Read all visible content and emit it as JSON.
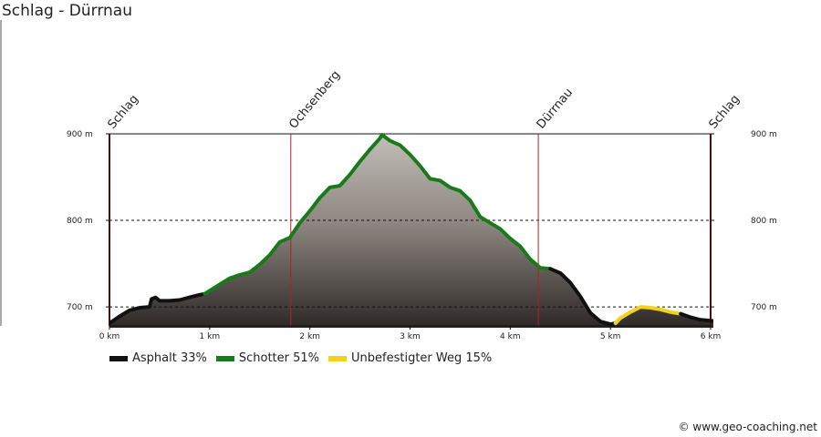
{
  "title": "Schlag - Dürrnau",
  "copyright": "© www.geo-coaching.net",
  "legend": [
    {
      "label": "Asphalt 33%",
      "color": "#111111"
    },
    {
      "label": "Schotter 51%",
      "color": "#1a7a1a"
    },
    {
      "label": "Unbefestigter Weg 15%",
      "color": "#f2d21a"
    }
  ],
  "chart_data": {
    "type": "area",
    "title": "Schlag - Dürrnau",
    "x_unit": "km",
    "y_unit": "m",
    "xlim": [
      0,
      6
    ],
    "ylim": [
      678,
      900
    ],
    "x_ticks": [
      0,
      1,
      2,
      3,
      4,
      5,
      6
    ],
    "x_tick_labels": [
      "0 km",
      "1 km",
      "2 km",
      "3 km",
      "4 km",
      "5 km",
      "6 km"
    ],
    "y_ticks": [
      700,
      800,
      900
    ],
    "y_tick_labels": [
      "700 m",
      "800 m",
      "900 m"
    ],
    "gridlines": "dashed at 700 m and 800 m",
    "waypoints": [
      {
        "name": "Schlag",
        "km": 0
      },
      {
        "name": "Ochsenberg",
        "km": 1.81
      },
      {
        "name": "Dürrnau",
        "km": 4.28
      },
      {
        "name": "Schlag",
        "km": 6.0
      }
    ],
    "series": [
      {
        "name": "Asphalt 33%",
        "color": "#111111",
        "points": [
          [
            0,
            681
          ],
          [
            0.1,
            689
          ],
          [
            0.2,
            696
          ],
          [
            0.3,
            699
          ],
          [
            0.4,
            700
          ],
          [
            0.42,
            709
          ],
          [
            0.46,
            711
          ],
          [
            0.5,
            707
          ],
          [
            0.6,
            707
          ],
          [
            0.7,
            708
          ],
          [
            0.8,
            711
          ],
          [
            0.9,
            714
          ],
          [
            0.95,
            715
          ]
        ]
      },
      {
        "name": "Schotter 51%",
        "color": "#1a7a1a",
        "points": [
          [
            0.95,
            715
          ],
          [
            1.1,
            726
          ],
          [
            1.2,
            733
          ],
          [
            1.3,
            737
          ],
          [
            1.4,
            740
          ],
          [
            1.5,
            749
          ],
          [
            1.6,
            760
          ],
          [
            1.7,
            775
          ],
          [
            1.8,
            780
          ],
          [
            1.9,
            797
          ],
          [
            2.0,
            811
          ],
          [
            2.1,
            826
          ],
          [
            2.2,
            838
          ],
          [
            2.3,
            840
          ],
          [
            2.4,
            853
          ],
          [
            2.5,
            868
          ],
          [
            2.6,
            882
          ],
          [
            2.7,
            895
          ],
          [
            2.72,
            899
          ],
          [
            2.8,
            892
          ],
          [
            2.9,
            887
          ],
          [
            3.0,
            876
          ],
          [
            3.1,
            863
          ],
          [
            3.2,
            848
          ],
          [
            3.3,
            846
          ],
          [
            3.4,
            838
          ],
          [
            3.5,
            834
          ],
          [
            3.6,
            823
          ],
          [
            3.7,
            804
          ],
          [
            3.8,
            797
          ],
          [
            3.9,
            790
          ],
          [
            4.0,
            779
          ],
          [
            4.1,
            770
          ],
          [
            4.2,
            755
          ],
          [
            4.3,
            745
          ],
          [
            4.4,
            744
          ]
        ]
      },
      {
        "name": "Asphalt 33%",
        "color": "#111111",
        "points": [
          [
            4.4,
            744
          ],
          [
            4.5,
            739
          ],
          [
            4.6,
            728
          ],
          [
            4.7,
            712
          ],
          [
            4.8,
            693
          ],
          [
            4.9,
            683
          ],
          [
            5.0,
            680
          ],
          [
            5.05,
            681
          ]
        ]
      },
      {
        "name": "Unbefestigter Weg 15%",
        "color": "#f2d21a",
        "points": [
          [
            5.05,
            681
          ],
          [
            5.1,
            687
          ],
          [
            5.2,
            694
          ],
          [
            5.3,
            700
          ],
          [
            5.4,
            699
          ],
          [
            5.5,
            697
          ],
          [
            5.6,
            694
          ],
          [
            5.7,
            692
          ]
        ]
      },
      {
        "name": "Asphalt 33%",
        "color": "#111111",
        "points": [
          [
            5.7,
            692
          ],
          [
            5.8,
            688
          ],
          [
            5.9,
            685
          ],
          [
            6.0,
            684
          ],
          [
            6.1,
            683
          ],
          [
            6.2,
            685
          ],
          [
            6.3,
            683
          ],
          [
            6.35,
            681
          ]
        ]
      }
    ]
  }
}
